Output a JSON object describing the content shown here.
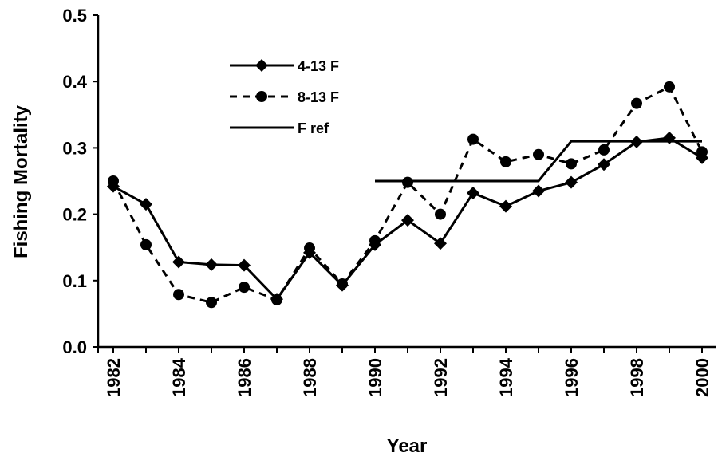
{
  "chart_data": {
    "type": "line",
    "title": "",
    "xlabel": "Year",
    "ylabel": "Fishing Mortality",
    "x": [
      1982,
      1983,
      1984,
      1985,
      1986,
      1987,
      1988,
      1989,
      1990,
      1991,
      1992,
      1993,
      1994,
      1995,
      1996,
      1997,
      1998,
      1999,
      2000
    ],
    "x_tick_labels": [
      "1982",
      "1984",
      "1986",
      "1988",
      "1990",
      "1992",
      "1994",
      "1996",
      "1998",
      "2000"
    ],
    "y_tick_labels": [
      "0.0",
      "0.1",
      "0.2",
      "0.3",
      "0.4",
      "0.5"
    ],
    "xlim": [
      1981.5,
      2000.5
    ],
    "ylim": [
      0,
      0.5
    ],
    "grid": false,
    "legend_position": "top-left",
    "series": [
      {
        "name": "4-13 F",
        "style": "solid-diamond",
        "x": [
          1982,
          1983,
          1984,
          1985,
          1986,
          1987,
          1988,
          1989,
          1990,
          1991,
          1992,
          1993,
          1994,
          1995,
          1996,
          1997,
          1998,
          1999,
          2000
        ],
        "values": [
          0.242,
          0.215,
          0.128,
          0.124,
          0.123,
          0.072,
          0.142,
          0.093,
          0.154,
          0.191,
          0.156,
          0.232,
          0.212,
          0.235,
          0.248,
          0.275,
          0.309,
          0.315,
          0.285
        ]
      },
      {
        "name": "8-13 F",
        "style": "dashed-circle",
        "x": [
          1982,
          1983,
          1984,
          1985,
          1986,
          1987,
          1988,
          1989,
          1990,
          1991,
          1992,
          1993,
          1994,
          1995,
          1996,
          1997,
          1998,
          1999,
          2000
        ],
        "values": [
          0.25,
          0.154,
          0.079,
          0.067,
          0.09,
          0.071,
          0.149,
          0.095,
          0.16,
          0.248,
          0.2,
          0.313,
          0.279,
          0.29,
          0.276,
          0.297,
          0.367,
          0.392,
          0.294
        ]
      },
      {
        "name": "F ref",
        "style": "solid",
        "x": [
          1990,
          1995,
          1996,
          2000
        ],
        "values": [
          0.25,
          0.25,
          0.31,
          0.31
        ]
      }
    ]
  },
  "colors": {
    "line": "#000000",
    "background": "#ffffff"
  }
}
